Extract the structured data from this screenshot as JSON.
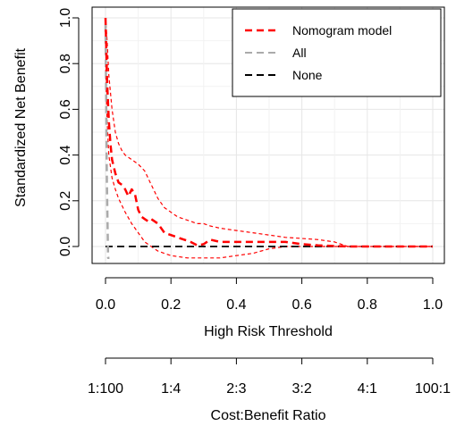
{
  "chart_data": {
    "type": "line",
    "title": "",
    "xlabel": "High Risk Threshold",
    "ylabel": "Standardized Net Benefit",
    "xlim": [
      0,
      1
    ],
    "ylim": [
      -0.05,
      1.0
    ],
    "x_ticks": [
      "0.0",
      "0.2",
      "0.4",
      "0.6",
      "0.8",
      "1.0"
    ],
    "y_ticks": [
      "0.0",
      "0.2",
      "0.4",
      "0.6",
      "0.8",
      "1.0"
    ],
    "grid": true,
    "legend_position": "top-right",
    "secondary_axis": {
      "label": "Cost:Benefit Ratio",
      "ticks": [
        "1:100",
        "1:4",
        "2:3",
        "3:2",
        "4:1",
        "100:1"
      ]
    },
    "series": [
      {
        "name": "Nomogram model",
        "color": "#ff0000",
        "style": "dashed",
        "x": [
          0.0,
          0.005,
          0.01,
          0.015,
          0.02,
          0.03,
          0.04,
          0.05,
          0.06,
          0.07,
          0.08,
          0.09,
          0.1,
          0.11,
          0.12,
          0.13,
          0.14,
          0.16,
          0.18,
          0.2,
          0.22,
          0.24,
          0.26,
          0.28,
          0.3,
          0.32,
          0.35,
          0.4,
          0.45,
          0.5,
          0.55,
          0.6,
          0.65,
          0.7,
          0.75,
          0.8,
          0.85,
          0.9,
          0.95,
          1.0
        ],
        "y": [
          1.0,
          0.72,
          0.55,
          0.45,
          0.38,
          0.32,
          0.28,
          0.27,
          0.25,
          0.22,
          0.25,
          0.23,
          0.16,
          0.13,
          0.12,
          0.11,
          0.12,
          0.1,
          0.06,
          0.05,
          0.04,
          0.03,
          0.02,
          0.005,
          0.01,
          0.03,
          0.02,
          0.02,
          0.02,
          0.02,
          0.02,
          0.01,
          0.005,
          0.002,
          0.0,
          0.0,
          0.0,
          0.0,
          0.0,
          0.0
        ]
      },
      {
        "name": "Nomogram model upper CI",
        "color": "#ff0000",
        "style": "dashed-thin",
        "x": [
          0.0,
          0.005,
          0.01,
          0.02,
          0.03,
          0.04,
          0.05,
          0.06,
          0.08,
          0.1,
          0.12,
          0.14,
          0.16,
          0.18,
          0.2,
          0.22,
          0.24,
          0.26,
          0.28,
          0.3,
          0.32,
          0.35,
          0.4,
          0.45,
          0.5,
          0.55,
          0.6,
          0.65,
          0.7,
          0.72,
          0.74,
          0.8,
          0.9,
          1.0
        ],
        "y": [
          1.0,
          0.9,
          0.75,
          0.6,
          0.5,
          0.45,
          0.42,
          0.4,
          0.38,
          0.36,
          0.33,
          0.27,
          0.21,
          0.17,
          0.15,
          0.13,
          0.12,
          0.11,
          0.1,
          0.1,
          0.09,
          0.08,
          0.07,
          0.06,
          0.05,
          0.04,
          0.035,
          0.03,
          0.02,
          0.01,
          0.0,
          0.0,
          0.0,
          0.0
        ]
      },
      {
        "name": "Nomogram model lower CI",
        "color": "#ff0000",
        "style": "dashed-thin",
        "x": [
          0.0,
          0.005,
          0.01,
          0.02,
          0.03,
          0.04,
          0.05,
          0.06,
          0.08,
          0.1,
          0.12,
          0.14,
          0.16,
          0.18,
          0.2,
          0.25,
          0.3,
          0.35,
          0.4,
          0.45,
          0.5,
          0.55,
          0.6,
          0.7,
          0.8,
          1.0
        ],
        "y": [
          0.8,
          0.55,
          0.4,
          0.3,
          0.25,
          0.21,
          0.18,
          0.15,
          0.1,
          0.06,
          0.02,
          0.0,
          -0.02,
          -0.03,
          -0.04,
          -0.05,
          -0.055,
          -0.05,
          -0.04,
          -0.03,
          -0.01,
          0.0,
          0.0,
          0.0,
          0.0,
          0.0
        ]
      },
      {
        "name": "All",
        "color": "#aaaaaa",
        "style": "dashed",
        "x": [
          0.0,
          0.004,
          0.008,
          0.012
        ],
        "y": [
          0.97,
          0.3,
          -0.05,
          -0.05
        ]
      },
      {
        "name": "None",
        "color": "#000000",
        "style": "dashed",
        "x": [
          0.0,
          1.0
        ],
        "y": [
          0.0,
          0.0
        ]
      }
    ]
  },
  "legend": {
    "items": [
      {
        "label": "Nomogram model",
        "color": "#ff0000"
      },
      {
        "label": "All",
        "color": "#aaaaaa"
      },
      {
        "label": "None",
        "color": "#000000"
      }
    ]
  }
}
